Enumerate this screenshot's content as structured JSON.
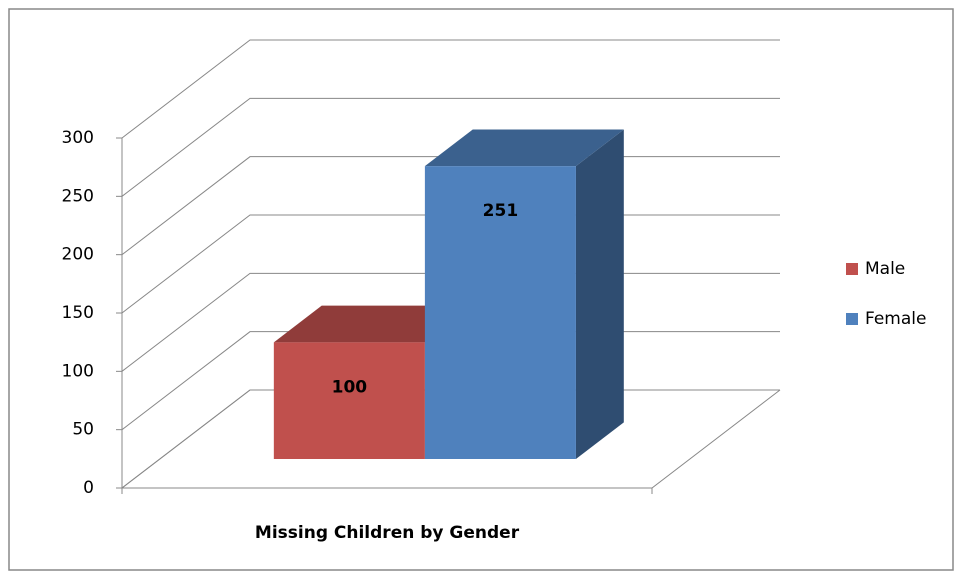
{
  "chart_data": {
    "type": "bar3d",
    "categories": [
      "Missing Children by Gender"
    ],
    "series": [
      {
        "name": "Male",
        "color": "#c0504d",
        "values": [
          100
        ]
      },
      {
        "name": "Female",
        "color": "#4f81bd",
        "values": [
          251
        ]
      }
    ],
    "ylim": [
      0,
      300
    ],
    "yticks": [
      0,
      50,
      100,
      150,
      200,
      250,
      300
    ],
    "grid": true,
    "legend": "right",
    "data_labels": true
  }
}
